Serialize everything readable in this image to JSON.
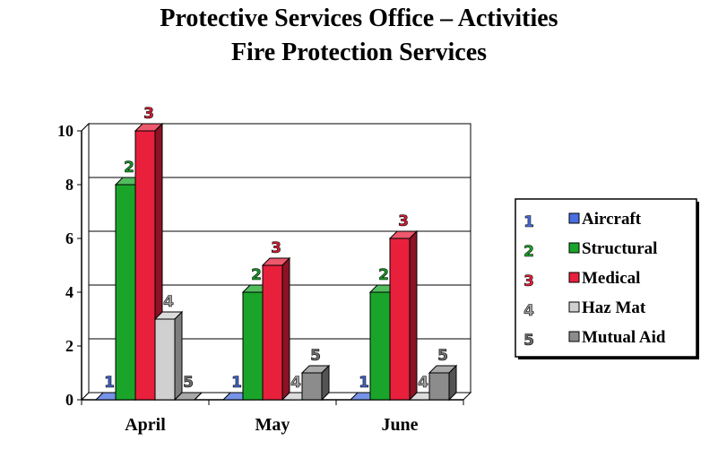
{
  "title": "Protective Services Office – Activities",
  "subtitle": "Fire Protection Services",
  "chart_data": {
    "type": "bar",
    "title": "Protective Services Office – Activities",
    "subtitle": "Fire Protection Services",
    "categories": [
      "April",
      "May",
      "June"
    ],
    "ylim": [
      0,
      10
    ],
    "yticks": [
      0,
      2,
      4,
      6,
      8,
      10
    ],
    "grid": true,
    "legend_position": "right",
    "series": [
      {
        "name": "Aircraft",
        "marker": "1",
        "color": "#4a6fe0",
        "values": [
          0,
          0,
          0
        ]
      },
      {
        "name": "Structural",
        "marker": "2",
        "color": "#1aa52a",
        "values": [
          8,
          4,
          4
        ]
      },
      {
        "name": "Medical",
        "marker": "3",
        "color": "#e8203c",
        "values": [
          10,
          5,
          6
        ]
      },
      {
        "name": "Haz Mat",
        "marker": "4",
        "color": "#d0d0d0",
        "values": [
          3,
          0,
          0
        ]
      },
      {
        "name": "Mutual Aid",
        "marker": "5",
        "color": "#8c8c8c",
        "values": [
          0,
          1,
          1
        ]
      }
    ]
  }
}
